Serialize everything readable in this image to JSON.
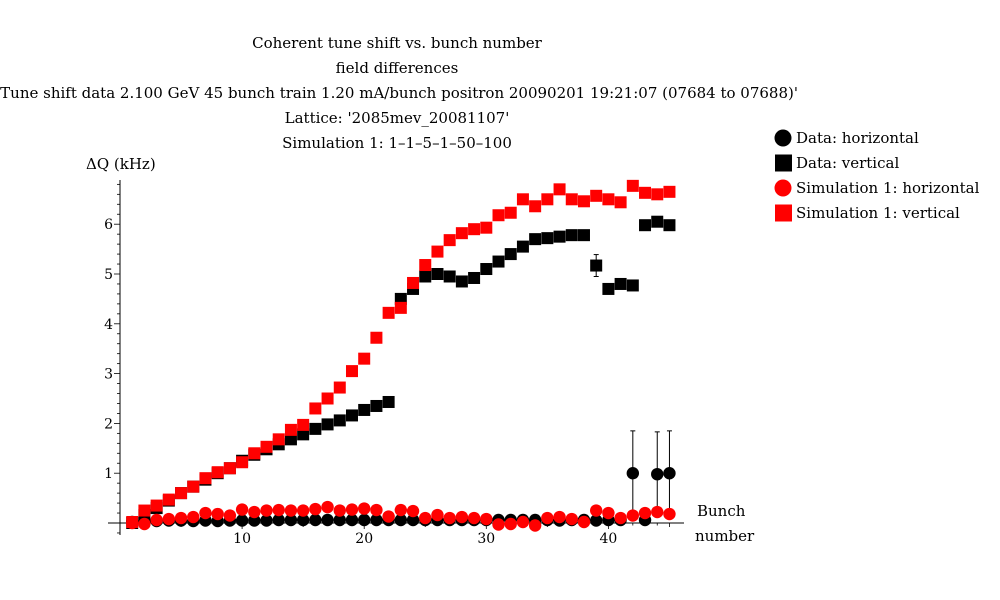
{
  "chart_data": {
    "type": "scatter",
    "title_lines": [
      "Coherent tune shift vs. bunch number",
      "field differences",
      "'Tune shift data 2.100 GeV  45 bunch train  1.20 mA/bunch positron 20090201 19:21:07 (07684 to 07688)'",
      "Lattice: '2085mev_20081107'",
      "Simulation 1: 1–1–5–1–50–100"
    ],
    "ylabel": "ΔQ (kHz)",
    "xlabel_lines": [
      "Bunch",
      "number"
    ],
    "xlim": [
      0,
      46
    ],
    "ylim": [
      -0.25,
      6.9
    ],
    "x_ticks": [
      10,
      20,
      30,
      40
    ],
    "y_ticks": [
      1,
      2,
      3,
      4,
      5,
      6
    ],
    "legend_position": "right",
    "series": [
      {
        "name": "Data: horizontal",
        "marker": "circle",
        "color": "#000000",
        "x": [
          1,
          2,
          3,
          4,
          5,
          6,
          7,
          8,
          9,
          10,
          11,
          12,
          13,
          14,
          15,
          16,
          17,
          18,
          19,
          20,
          21,
          22,
          23,
          24,
          25,
          26,
          27,
          28,
          29,
          30,
          31,
          32,
          33,
          34,
          35,
          36,
          37,
          38,
          39,
          40,
          41,
          42,
          43,
          44,
          45
        ],
        "y": [
          0.02,
          0.03,
          0.04,
          0.05,
          0.05,
          0.04,
          0.05,
          0.04,
          0.05,
          0.05,
          0.05,
          0.05,
          0.06,
          0.06,
          0.06,
          0.06,
          0.06,
          0.06,
          0.06,
          0.06,
          0.06,
          0.06,
          0.06,
          0.06,
          0.06,
          0.06,
          0.06,
          0.06,
          0.06,
          0.06,
          0.06,
          0.06,
          0.06,
          0.06,
          0.06,
          0.05,
          0.06,
          0.06,
          0.05,
          0.06,
          0.06,
          1.0,
          0.06,
          0.98,
          1.0
        ],
        "errors": [
          0,
          0,
          0,
          0,
          0,
          0,
          0,
          0,
          0,
          0,
          0,
          0,
          0,
          0,
          0,
          0,
          0,
          0,
          0,
          0,
          0,
          0,
          0,
          0,
          0,
          0,
          0,
          0,
          0,
          0,
          0,
          0,
          0,
          0,
          0,
          0,
          0,
          0,
          0,
          0,
          0,
          0.85,
          0,
          0.85,
          0.85
        ]
      },
      {
        "name": "Data: vertical",
        "marker": "square",
        "color": "#000000",
        "x": [
          1,
          2,
          3,
          4,
          5,
          6,
          7,
          8,
          9,
          10,
          11,
          12,
          13,
          14,
          15,
          16,
          17,
          18,
          19,
          20,
          21,
          22,
          23,
          24,
          25,
          26,
          27,
          28,
          29,
          30,
          31,
          32,
          33,
          34,
          35,
          36,
          37,
          38,
          39,
          40,
          41,
          42,
          43,
          44,
          45
        ],
        "y": [
          0.0,
          0.16,
          0.3,
          0.45,
          0.6,
          0.73,
          0.87,
          1.0,
          1.1,
          1.25,
          1.37,
          1.48,
          1.58,
          1.68,
          1.78,
          1.89,
          1.98,
          2.06,
          2.16,
          2.27,
          2.35,
          2.43,
          4.5,
          4.7,
          4.95,
          5.0,
          4.95,
          4.85,
          4.92,
          5.1,
          5.25,
          5.4,
          5.55,
          5.7,
          5.72,
          5.75,
          5.78,
          5.78,
          5.17,
          4.7,
          4.8,
          4.77,
          5.98,
          6.05,
          5.98
        ],
        "errors": [
          0,
          0,
          0,
          0,
          0,
          0,
          0,
          0,
          0,
          0,
          0,
          0,
          0,
          0,
          0,
          0,
          0,
          0,
          0,
          0,
          0,
          0,
          0,
          0,
          0,
          0,
          0,
          0,
          0,
          0,
          0,
          0,
          0,
          0,
          0,
          0,
          0,
          0,
          0.22,
          0,
          0,
          0,
          0,
          0,
          0
        ]
      },
      {
        "name": "Simulation 1: horizontal",
        "marker": "circle",
        "color": "#ff0000",
        "x": [
          1,
          2,
          3,
          4,
          5,
          6,
          7,
          8,
          9,
          10,
          11,
          12,
          13,
          14,
          15,
          16,
          17,
          18,
          19,
          20,
          21,
          22,
          23,
          24,
          25,
          26,
          27,
          28,
          29,
          30,
          31,
          32,
          33,
          34,
          35,
          36,
          37,
          38,
          39,
          40,
          41,
          42,
          43,
          44,
          45
        ],
        "y": [
          0.0,
          -0.02,
          0.06,
          0.08,
          0.1,
          0.12,
          0.2,
          0.18,
          0.15,
          0.27,
          0.22,
          0.25,
          0.26,
          0.25,
          0.25,
          0.28,
          0.32,
          0.25,
          0.27,
          0.29,
          0.26,
          0.13,
          0.26,
          0.24,
          0.1,
          0.16,
          0.1,
          0.12,
          0.1,
          0.08,
          -0.03,
          -0.02,
          0.02,
          -0.05,
          0.1,
          0.12,
          0.08,
          0.02,
          0.25,
          0.2,
          0.1,
          0.15,
          0.2,
          0.22,
          0.18
        ],
        "errors": [
          0,
          0,
          0,
          0,
          0,
          0,
          0,
          0,
          0,
          0,
          0,
          0,
          0,
          0,
          0,
          0,
          0,
          0,
          0,
          0,
          0,
          0,
          0,
          0,
          0,
          0,
          0,
          0,
          0,
          0,
          0,
          0,
          0,
          0,
          0,
          0,
          0,
          0,
          0,
          0,
          0,
          0,
          0,
          0,
          0
        ]
      },
      {
        "name": "Simulation 1: vertical",
        "marker": "square",
        "color": "#ff0000",
        "x": [
          1,
          2,
          3,
          4,
          5,
          6,
          7,
          8,
          9,
          10,
          11,
          12,
          13,
          14,
          15,
          16,
          17,
          18,
          19,
          20,
          21,
          22,
          23,
          24,
          25,
          26,
          27,
          28,
          29,
          30,
          31,
          32,
          33,
          34,
          35,
          36,
          37,
          38,
          39,
          40,
          41,
          42,
          43,
          44,
          45
        ],
        "y": [
          0.02,
          0.25,
          0.35,
          0.47,
          0.6,
          0.73,
          0.9,
          1.02,
          1.1,
          1.22,
          1.4,
          1.53,
          1.68,
          1.87,
          1.97,
          2.3,
          2.5,
          2.72,
          3.05,
          3.3,
          3.72,
          4.22,
          4.32,
          4.82,
          5.18,
          5.45,
          5.68,
          5.82,
          5.9,
          5.93,
          6.18,
          6.23,
          6.5,
          6.36,
          6.5,
          6.7,
          6.5,
          6.46,
          6.57,
          6.5,
          6.44,
          6.77,
          6.63,
          6.6,
          6.65
        ],
        "errors": [
          0,
          0,
          0,
          0,
          0,
          0,
          0,
          0,
          0,
          0,
          0,
          0,
          0,
          0,
          0,
          0,
          0,
          0,
          0,
          0,
          0,
          0,
          0,
          0,
          0,
          0,
          0,
          0,
          0,
          0,
          0,
          0,
          0.08,
          0.08,
          0.06,
          0,
          0.08,
          0.08,
          0.08,
          0.08,
          0.08,
          0,
          0.06,
          0.06,
          0.06
        ]
      }
    ]
  }
}
